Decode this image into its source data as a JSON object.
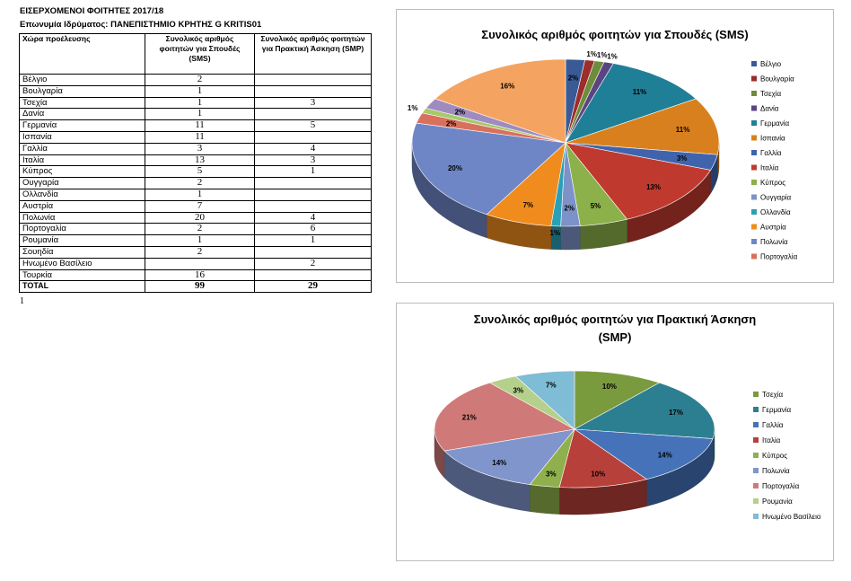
{
  "header": {
    "title": "ΕΙΣΕΡΧΟΜΕΝΟΙ ΦΟΙΤΗΤΕΣ 2017/18",
    "institution": "Επωνυμία Ιδρύματος: ΠΑΝΕΠΙΣΤΗΜΙΟ ΚΡΗΤΗΣ G KRITIS01"
  },
  "table": {
    "columns": [
      "Χώρα προέλευσης",
      "Συνολικός αριθμός φοιτητών για Σπουδές (SMS)",
      "Συνολικός αριθμός φοιτητών για Πρακτική Άσκηση (SMP)"
    ],
    "rows": [
      {
        "country": "Βέλγιο",
        "sms": "2",
        "smp": ""
      },
      {
        "country": "Βουλγαρία",
        "sms": "1",
        "smp": ""
      },
      {
        "country": "Τσεχία",
        "sms": "1",
        "smp": "3"
      },
      {
        "country": "Δανία",
        "sms": "1",
        "smp": ""
      },
      {
        "country": "Γερμανία",
        "sms": "11",
        "smp": "5"
      },
      {
        "country": "Ισπανία",
        "sms": "11",
        "smp": ""
      },
      {
        "country": "Γαλλία",
        "sms": "3",
        "smp": "4"
      },
      {
        "country": "Ιταλία",
        "sms": "13",
        "smp": "3"
      },
      {
        "country": "Κύπρος",
        "sms": "5",
        "smp": "1"
      },
      {
        "country": "Ουγγαρία",
        "sms": "2",
        "smp": ""
      },
      {
        "country": "Ολλανδία",
        "sms": "1",
        "smp": ""
      },
      {
        "country": "Αυστρία",
        "sms": "7",
        "smp": ""
      },
      {
        "country": "Πολωνία",
        "sms": "20",
        "smp": "4"
      },
      {
        "country": "Πορτογαλία",
        "sms": "2",
        "smp": "6"
      },
      {
        "country": "Ρουμανία",
        "sms": "1",
        "smp": "1"
      },
      {
        "country": "Σουηδία",
        "sms": "2",
        "smp": ""
      },
      {
        "country": "Ηνωμένο Βασίλειο",
        "sms": "",
        "smp": "2"
      },
      {
        "country": "Τουρκία",
        "sms": "16",
        "smp": ""
      }
    ],
    "total": {
      "label": "TOTAL",
      "sms": "99",
      "smp": "29"
    }
  },
  "footnote": "1",
  "chart_data": [
    {
      "type": "pie",
      "title": "Συνολικός αριθμός φοιτητών για Σπουδές (SMS)",
      "labels": [
        "2%",
        "1%",
        "1%",
        "1%",
        "11%",
        "11%",
        "3%",
        "13%",
        "5%",
        "2%",
        "1%",
        "7%",
        "20%",
        "2%",
        "1%",
        "2%",
        "16%"
      ],
      "values": [
        2,
        1,
        1,
        1,
        11,
        11,
        3,
        13,
        5,
        2,
        1,
        7,
        20,
        2,
        1,
        2,
        16
      ],
      "slices": [
        "Βέλγιο",
        "Βουλγαρία",
        "Τσεχία",
        "Δανία",
        "Γερμανία",
        "Ισπανία",
        "Γαλλία",
        "Ιταλία",
        "Κύπρος",
        "Ουγγαρία",
        "Ολλανδία",
        "Αυστρία",
        "Πολωνία",
        "Πορτογαλία",
        "Ρουμανία",
        "Σουηδία",
        "Τουρκία"
      ],
      "colors": [
        "#3a5a96",
        "#9b2d2a",
        "#6e8c3a",
        "#5a4582",
        "#1f7f96",
        "#d9801e",
        "#3f64ad",
        "#c0392f",
        "#8cb04a",
        "#7d92c9",
        "#2aa0b8",
        "#f08c1e",
        "#6f86c6",
        "#d9705d",
        "#a8c86a",
        "#9e8cc0",
        "#f4a460"
      ],
      "legend": [
        "Βέλγιο",
        "Βουλγαρία",
        "Τσεχία",
        "Δανία",
        "Γερμανία",
        "Ισπανία",
        "Γαλλία",
        "Ιταλία",
        "Κύπρος",
        "Ουγγαρία",
        "Ολλανδία",
        "Αυστρία",
        "Πολωνία",
        "Πορτογαλία"
      ],
      "legend_position": "right"
    },
    {
      "type": "pie",
      "title": "Συνολικός αριθμός φοιτητών για Πρακτική Άσκηση (SMP)",
      "labels": [
        "10%",
        "17%",
        "14%",
        "10%",
        "3%",
        "14%",
        "21%",
        "3%",
        "7%"
      ],
      "values": [
        3,
        5,
        4,
        3,
        1,
        4,
        6,
        1,
        2
      ],
      "slices": [
        "Τσεχία",
        "Γερμανία",
        "Γαλλία",
        "Ιταλία",
        "Κύπρος",
        "Πολωνία",
        "Πορτογαλία",
        "Ρουμανία",
        "Ηνωμένο Βασίλειο"
      ],
      "colors": [
        "#7a9a3e",
        "#2c7f91",
        "#4572b8",
        "#b8403a",
        "#8fb04c",
        "#7f95cc",
        "#cf7a78",
        "#b5d08a",
        "#7fbcd6"
      ],
      "legend": [
        "Τσεχία",
        "Γερμανία",
        "Γαλλία",
        "Ιταλία",
        "Κύπρος",
        "Πολωνία",
        "Πορτογαλία",
        "Ρουμανία",
        "Ηνωμένο Βασίλειο"
      ],
      "legend_position": "right"
    }
  ]
}
